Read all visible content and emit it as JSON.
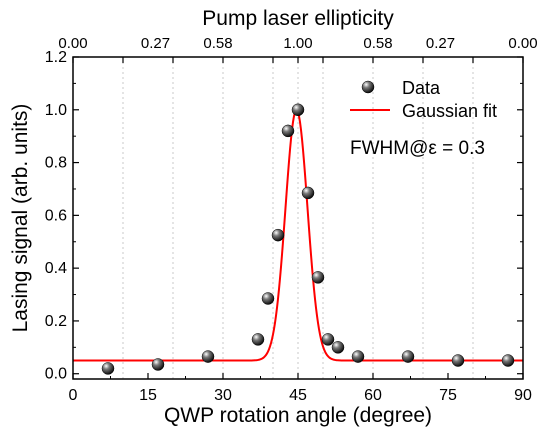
{
  "chart_data": {
    "type": "scatter",
    "title": "Pump laser ellipticity",
    "xlabel": "QWP rotation angle (degree)",
    "ylabel": "Lasing signal (arb. units)",
    "xlim": [
      0,
      90
    ],
    "ylim": [
      -0.02,
      1.2
    ],
    "xticks": [
      0,
      15,
      30,
      45,
      60,
      75,
      90
    ],
    "xtick_labels": [
      "0",
      "15",
      "30",
      "45",
      "60",
      "75",
      "90"
    ],
    "yticks": [
      0.0,
      0.2,
      0.4,
      0.6,
      0.8,
      1.0,
      1.2
    ],
    "ytick_labels": [
      "0.0",
      "0.2",
      "0.4",
      "0.6",
      "0.8",
      "1.0",
      "1.2"
    ],
    "top_axis": {
      "ticks": [
        0,
        10,
        20,
        30,
        40,
        45,
        50,
        60,
        70,
        80,
        90
      ],
      "labels": [
        {
          "at": 0,
          "text": "0.00"
        },
        {
          "at": 16.5,
          "text": "0.27"
        },
        {
          "at": 29,
          "text": "0.58"
        },
        {
          "at": 45,
          "text": "1.00"
        },
        {
          "at": 61,
          "text": "0.58"
        },
        {
          "at": 73.5,
          "text": "0.27"
        },
        {
          "at": 90,
          "text": "0.00"
        }
      ]
    },
    "grid": "vertical-dashed",
    "legend_position": "top-right",
    "series": [
      {
        "name": "Data",
        "kind": "scatter",
        "x": [
          7,
          17,
          27,
          37,
          39,
          41,
          43,
          45,
          47,
          49,
          51,
          53,
          57,
          67,
          77,
          87
        ],
        "y": [
          0.02,
          0.035,
          0.065,
          0.13,
          0.285,
          0.525,
          0.92,
          1.0,
          0.685,
          0.365,
          0.13,
          0.1,
          0.065,
          0.065,
          0.05,
          0.05
        ]
      },
      {
        "name": "Gaussian fit",
        "kind": "line",
        "color": "#ff0000",
        "function": "gaussian",
        "baseline": 0.05,
        "amplitude": 0.95,
        "center": 44.7,
        "fwhm": 5.2
      }
    ],
    "annotations": [
      "FWHM@ε = 0.3"
    ]
  }
}
